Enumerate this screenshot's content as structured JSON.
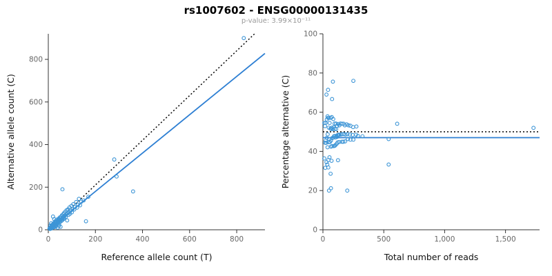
{
  "header": {
    "title": "rs1007602 - ENSG00000131435",
    "subtitle": "p-value: 3.99×10⁻¹¹"
  },
  "style": {
    "point_color": "#3d95d6",
    "line_color": "#2d7fd3",
    "dotted_color": "#000000",
    "axis_color": "#333333",
    "tick_label_color": "#666666",
    "axis_title_color": "#111111"
  },
  "chart_data": [
    {
      "type": "scatter",
      "title": "rs1007602 - ENSG00000131435",
      "xlabel": "Reference allele count (T)",
      "ylabel": "Alternative allele count (C)",
      "xlim": [
        0,
        920
      ],
      "ylim": [
        0,
        920
      ],
      "xticks": [
        0,
        200,
        400,
        600,
        800
      ],
      "xtick_labels": [
        "0",
        "200",
        "400",
        "600",
        "800"
      ],
      "yticks": [
        0,
        200,
        400,
        600,
        800
      ],
      "ytick_labels": [
        "0",
        "200",
        "400",
        "600",
        "800"
      ],
      "grid": false,
      "points": [
        [
          5,
          6
        ],
        [
          7,
          4
        ],
        [
          8,
          9
        ],
        [
          10,
          8
        ],
        [
          10,
          12
        ],
        [
          12,
          10
        ],
        [
          13,
          6
        ],
        [
          14,
          18
        ],
        [
          15,
          12
        ],
        [
          16,
          22
        ],
        [
          17,
          15
        ],
        [
          18,
          24
        ],
        [
          19,
          10
        ],
        [
          20,
          19
        ],
        [
          21,
          28
        ],
        [
          22,
          16
        ],
        [
          23,
          25
        ],
        [
          24,
          12
        ],
        [
          25,
          30
        ],
        [
          26,
          21
        ],
        [
          27,
          36
        ],
        [
          28,
          24
        ],
        [
          29,
          16
        ],
        [
          30,
          32
        ],
        [
          31,
          42
        ],
        [
          32,
          26
        ],
        [
          33,
          35
        ],
        [
          34,
          20
        ],
        [
          35,
          38
        ],
        [
          36,
          30
        ],
        [
          37,
          48
        ],
        [
          38,
          28
        ],
        [
          39,
          41
        ],
        [
          40,
          10
        ],
        [
          41,
          36
        ],
        [
          42,
          46
        ],
        [
          43,
          32
        ],
        [
          44,
          52
        ],
        [
          45,
          40
        ],
        [
          46,
          25
        ],
        [
          47,
          50
        ],
        [
          48,
          44
        ],
        [
          49,
          58
        ],
        [
          50,
          46
        ],
        [
          51,
          38
        ],
        [
          52,
          14
        ],
        [
          53,
          56
        ],
        [
          54,
          48
        ],
        [
          55,
          62
        ],
        [
          56,
          42
        ],
        [
          57,
          52
        ],
        [
          58,
          68
        ],
        [
          59,
          45
        ],
        [
          60,
          190
        ],
        [
          61,
          55
        ],
        [
          62,
          58
        ],
        [
          63,
          72
        ],
        [
          64,
          50
        ],
        [
          65,
          61
        ],
        [
          66,
          78
        ],
        [
          67,
          54
        ],
        [
          68,
          64
        ],
        [
          70,
          66
        ],
        [
          72,
          85
        ],
        [
          74,
          60
        ],
        [
          76,
          72
        ],
        [
          78,
          92
        ],
        [
          80,
          44
        ],
        [
          82,
          78
        ],
        [
          84,
          96
        ],
        [
          86,
          70
        ],
        [
          88,
          84
        ],
        [
          90,
          105
        ],
        [
          92,
          75
        ],
        [
          95,
          90
        ],
        [
          98,
          112
        ],
        [
          100,
          82
        ],
        [
          103,
          98
        ],
        [
          106,
          120
        ],
        [
          110,
          95
        ],
        [
          114,
          108
        ],
        [
          118,
          130
        ],
        [
          122,
          104
        ],
        [
          126,
          118
        ],
        [
          130,
          145
        ],
        [
          135,
          115
        ],
        [
          140,
          132
        ],
        [
          150,
          138
        ],
        [
          160,
          40
        ],
        [
          170,
          155
        ],
        [
          280,
          330
        ],
        [
          290,
          250
        ],
        [
          360,
          180
        ],
        [
          830,
          900
        ],
        [
          20,
          62
        ],
        [
          30,
          14
        ],
        [
          12,
          30
        ],
        [
          9,
          20
        ],
        [
          25,
          50
        ],
        [
          45,
          18
        ]
      ],
      "lines": [
        {
          "name": "fit-line",
          "style": "solid",
          "color": "#2d7fd3",
          "x1": 0,
          "y1": 0,
          "x2": 920,
          "y2": 828
        },
        {
          "name": "identity-line",
          "style": "dotted",
          "color": "#000000",
          "x1": 0,
          "y1": 0,
          "x2": 876,
          "y2": 920
        }
      ]
    },
    {
      "type": "scatter",
      "title": "rs1007602 - ENSG00000131435",
      "xlabel": "Total number of reads",
      "ylabel": "Percentage alternative (C)",
      "xlim": [
        0,
        1780
      ],
      "ylim": [
        0,
        100
      ],
      "xticks": [
        0,
        500,
        1000,
        1500
      ],
      "xtick_labels": [
        "0",
        "500",
        "1,000",
        "1,500"
      ],
      "yticks": [
        0,
        20,
        40,
        60,
        80,
        100
      ],
      "ytick_labels": [
        "0",
        "20",
        "40",
        "60",
        "80",
        "100"
      ],
      "grid": false,
      "points": [
        [
          11,
          54.5
        ],
        [
          11,
          36.4
        ],
        [
          17,
          52.9
        ],
        [
          18,
          44.4
        ],
        [
          22,
          54.5
        ],
        [
          22,
          45.5
        ],
        [
          19,
          31.6
        ],
        [
          32,
          56.3
        ],
        [
          27,
          44.4
        ],
        [
          38,
          57.9
        ],
        [
          32,
          46.9
        ],
        [
          42,
          57.1
        ],
        [
          29,
          34.5
        ],
        [
          39,
          48.7
        ],
        [
          49,
          57.1
        ],
        [
          38,
          42.1
        ],
        [
          48,
          52.1
        ],
        [
          36,
          33.3
        ],
        [
          55,
          54.5
        ],
        [
          47,
          44.7
        ],
        [
          63,
          57.1
        ],
        [
          52,
          46.2
        ],
        [
          45,
          35.6
        ],
        [
          62,
          51.6
        ],
        [
          73,
          57.5
        ],
        [
          58,
          44.8
        ],
        [
          68,
          51.5
        ],
        [
          54,
          37.0
        ],
        [
          73,
          52.1
        ],
        [
          66,
          45.5
        ],
        [
          85,
          56.5
        ],
        [
          66,
          42.4
        ],
        [
          80,
          51.3
        ],
        [
          50,
          20.0
        ],
        [
          77,
          46.8
        ],
        [
          88,
          52.3
        ],
        [
          75,
          42.7
        ],
        [
          96,
          54.2
        ],
        [
          85,
          47.1
        ],
        [
          71,
          35.2
        ],
        [
          97,
          51.5
        ],
        [
          92,
          47.8
        ],
        [
          107,
          54.2
        ],
        [
          96,
          47.9
        ],
        [
          89,
          42.7
        ],
        [
          66,
          21.2
        ],
        [
          109,
          51.4
        ],
        [
          102,
          47.1
        ],
        [
          117,
          53.0
        ],
        [
          98,
          42.9
        ],
        [
          109,
          47.7
        ],
        [
          126,
          54.0
        ],
        [
          104,
          43.3
        ],
        [
          250,
          76.0
        ],
        [
          116,
          47.4
        ],
        [
          120,
          48.3
        ],
        [
          135,
          53.3
        ],
        [
          114,
          43.9
        ],
        [
          126,
          48.4
        ],
        [
          144,
          54.2
        ],
        [
          121,
          44.6
        ],
        [
          132,
          48.5
        ],
        [
          136,
          48.5
        ],
        [
          157,
          54.1
        ],
        [
          134,
          44.8
        ],
        [
          148,
          48.6
        ],
        [
          170,
          54.1
        ],
        [
          124,
          35.5
        ],
        [
          160,
          48.8
        ],
        [
          180,
          53.3
        ],
        [
          156,
          44.9
        ],
        [
          172,
          48.8
        ],
        [
          195,
          53.8
        ],
        [
          167,
          44.9
        ],
        [
          185,
          48.6
        ],
        [
          210,
          53.3
        ],
        [
          182,
          45.1
        ],
        [
          201,
          48.8
        ],
        [
          226,
          53.1
        ],
        [
          205,
          46.3
        ],
        [
          222,
          48.6
        ],
        [
          248,
          52.4
        ],
        [
          226,
          46.0
        ],
        [
          244,
          48.4
        ],
        [
          275,
          52.7
        ],
        [
          250,
          46.0
        ],
        [
          272,
          48.5
        ],
        [
          288,
          47.9
        ],
        [
          200,
          20.0
        ],
        [
          325,
          47.7
        ],
        [
          610,
          54.1
        ],
        [
          540,
          46.3
        ],
        [
          540,
          33.3
        ],
        [
          1730,
          52.0
        ],
        [
          82,
          75.6
        ],
        [
          44,
          31.8
        ],
        [
          42,
          71.4
        ],
        [
          29,
          69.0
        ],
        [
          75,
          66.7
        ],
        [
          63,
          28.6
        ]
      ],
      "lines": [
        {
          "name": "fit-line",
          "style": "solid",
          "color": "#2d7fd3",
          "x1": 0,
          "y1": 47,
          "x2": 1780,
          "y2": 47
        },
        {
          "name": "reference-line",
          "style": "dotted",
          "color": "#000000",
          "x1": 0,
          "y1": 50,
          "x2": 1780,
          "y2": 50
        }
      ]
    }
  ]
}
